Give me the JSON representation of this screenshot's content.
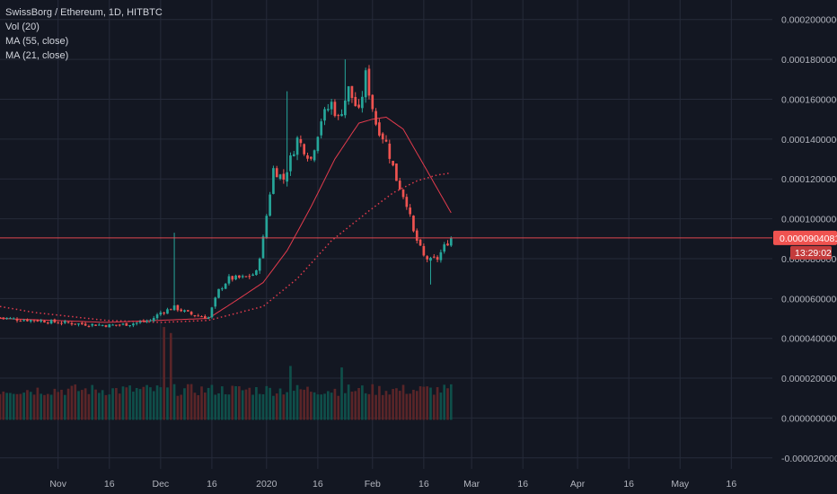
{
  "legend": {
    "title": "SwissBorg / Ethereum, 1D, HITBTC",
    "vol": "Vol (20)",
    "ma55": "MA (55, close)",
    "ma21": "MA (21, close)"
  },
  "colors": {
    "background": "#131722",
    "grid": "#262b3a",
    "up": "#26a69a",
    "down": "#ef5350",
    "vol_up": "#0f4f4a",
    "vol_down": "#5a2528",
    "ma21": "#e23b4d",
    "ma55": "#e23b4d",
    "price_line": "#e04750",
    "axis_text": "#b2b5be",
    "tag_bg": "#ef5350",
    "tag_time_bg": "#c43c3c"
  },
  "chart_data": {
    "type": "candlestick",
    "x_axis": {
      "tick_labels": [
        "Nov",
        "16",
        "Dec",
        "16",
        "2020",
        "16",
        "Feb",
        "16",
        "Mar",
        "16",
        "Apr",
        "16",
        "May",
        "16"
      ],
      "tick_dates": [
        "2019-11-01",
        "2019-11-16",
        "2019-12-01",
        "2019-12-16",
        "2020-01-01",
        "2020-01-16",
        "2020-02-01",
        "2020-02-16",
        "2020-03-01",
        "2020-03-16",
        "2020-04-01",
        "2020-04-16",
        "2020-05-01",
        "2020-05-16"
      ],
      "range": [
        "2019-10-15",
        "2020-05-28"
      ]
    },
    "y_axis": {
      "tick_labels": [
        "0.0002000000",
        "0.0001800000",
        "0.0001600000",
        "0.0001400000",
        "0.0001200000",
        "0.0001000000",
        "0.0000800000",
        "0.0000600000",
        "0.0000400000",
        "0.0000200000",
        "0.0000000000",
        "-0.0000200000"
      ],
      "ticks": [
        0.0002,
        0.00018,
        0.00016,
        0.00014,
        0.00012,
        0.0001,
        8e-05,
        6e-05,
        4e-05,
        2e-05,
        0.0,
        -2e-05
      ],
      "range": [
        -2.55e-05,
        0.0002098
      ]
    },
    "last_price": {
      "label": "0.0000904081",
      "value": 9.04081e-05,
      "countdown": "13:29:02"
    },
    "close_anchors": [
      [
        "2019-10-15",
        5.05e-05
      ],
      [
        "2019-10-20",
        4.95e-05
      ],
      [
        "2019-10-26",
        4.9e-05
      ],
      [
        "2019-11-01",
        4.8e-05
      ],
      [
        "2019-11-08",
        4.72e-05
      ],
      [
        "2019-11-16",
        4.65e-05
      ],
      [
        "2019-11-22",
        4.72e-05
      ],
      [
        "2019-11-28",
        4.9e-05
      ],
      [
        "2019-12-01",
        5.3e-05
      ],
      [
        "2019-12-05",
        5.55e-05
      ],
      [
        "2019-12-10",
        5.2e-05
      ],
      [
        "2019-12-15",
        5.05e-05
      ],
      [
        "2019-12-18",
        6.4e-05
      ],
      [
        "2019-12-21",
        7e-05
      ],
      [
        "2019-12-26",
        7.05e-05
      ],
      [
        "2019-12-29",
        7.3e-05
      ],
      [
        "2019-12-31",
        9e-05
      ],
      [
        "2020-01-03",
        0.000125
      ],
      [
        "2020-01-06",
        0.00012
      ],
      [
        "2020-01-10",
        0.00014
      ],
      [
        "2020-01-14",
        0.00013
      ],
      [
        "2020-01-17",
        0.00015
      ],
      [
        "2020-01-20",
        0.000158
      ],
      [
        "2020-01-22",
        0.00015
      ],
      [
        "2020-01-25",
        0.000165
      ],
      [
        "2020-01-28",
        0.000153
      ],
      [
        "2020-01-30",
        0.000172
      ],
      [
        "2020-02-02",
        0.000148
      ],
      [
        "2020-02-05",
        0.000138
      ],
      [
        "2020-02-08",
        0.00012
      ],
      [
        "2020-02-11",
        0.000108
      ],
      [
        "2020-02-13",
        9.3e-05
      ],
      [
        "2020-02-16",
        8.1e-05
      ],
      [
        "2020-02-18",
        7.9e-05
      ],
      [
        "2020-02-20",
        8e-05
      ],
      [
        "2020-02-22",
        8.6e-05
      ],
      [
        "2020-02-24",
        9.04081e-05
      ]
    ],
    "ma21_anchors": [
      [
        "2019-10-15",
        5e-05
      ],
      [
        "2019-11-15",
        4.8e-05
      ],
      [
        "2019-12-15",
        5e-05
      ],
      [
        "2019-12-24",
        6e-05
      ],
      [
        "2019-12-31",
        6.8e-05
      ],
      [
        "2020-01-07",
        8.4e-05
      ],
      [
        "2020-01-14",
        0.000106
      ],
      [
        "2020-01-21",
        0.00013
      ],
      [
        "2020-01-28",
        0.000148
      ],
      [
        "2020-02-01",
        0.00015
      ],
      [
        "2020-02-05",
        0.000151
      ],
      [
        "2020-02-10",
        0.000145
      ],
      [
        "2020-02-15",
        0.00013
      ],
      [
        "2020-02-20",
        0.000115
      ],
      [
        "2020-02-24",
        0.000103
      ]
    ],
    "ma55_anchors": [
      [
        "2019-10-15",
        5.6e-05
      ],
      [
        "2019-10-25",
        5.3e-05
      ],
      [
        "2019-11-15",
        4.9e-05
      ],
      [
        "2019-12-01",
        4.8e-05
      ],
      [
        "2019-12-15",
        4.9e-05
      ],
      [
        "2019-12-31",
        5.6e-05
      ],
      [
        "2020-01-10",
        7e-05
      ],
      [
        "2020-01-20",
        8.9e-05
      ],
      [
        "2020-01-31",
        0.000104
      ],
      [
        "2020-02-07",
        0.000113
      ],
      [
        "2020-02-14",
        0.000119
      ],
      [
        "2020-02-20",
        0.000122
      ],
      [
        "2020-02-24",
        0.000123
      ]
    ],
    "volume_max": 3e-05,
    "volume_spikes": [
      [
        "2019-12-02",
        3.1e-05
      ],
      [
        "2019-12-04",
        2.9e-05
      ],
      [
        "2020-01-08",
        1.8e-05
      ],
      [
        "2020-01-23",
        1.75e-05
      ]
    ],
    "wick_spikes": [
      [
        "2019-12-05",
        9.3e-05
      ],
      [
        "2020-01-07",
        0.000164
      ],
      [
        "2020-01-24",
        0.00018
      ],
      [
        "2020-02-18",
        6.7e-05
      ]
    ]
  }
}
